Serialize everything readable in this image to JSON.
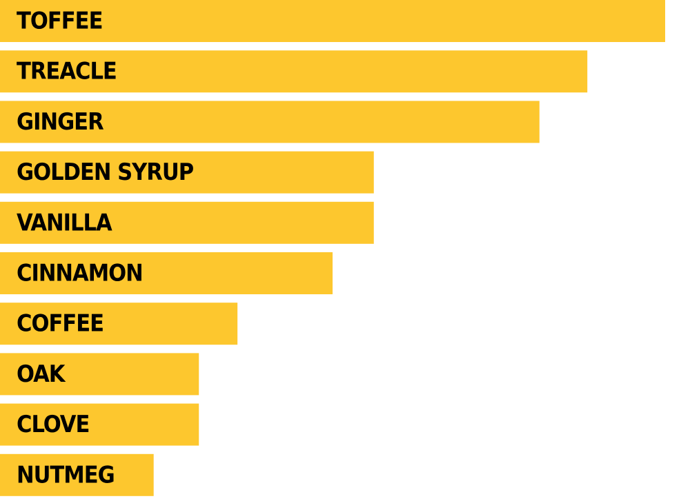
{
  "chart_data": {
    "type": "bar",
    "orientation": "horizontal",
    "categories": [
      "TOFFEE",
      "TREACLE",
      "GINGER",
      "GOLDEN SYRUP",
      "VANILLA",
      "CINNAMON",
      "COFFEE",
      "OAK",
      "CLOVE",
      "NUTMEG"
    ],
    "values": [
      100,
      88.3,
      81.1,
      56.2,
      56.2,
      50,
      35.7,
      29.9,
      29.9,
      23.1
    ],
    "xlim": [
      0,
      100
    ],
    "grid": false,
    "legend": false,
    "bar_color": "#FDC72E",
    "label_color": "#000000"
  }
}
